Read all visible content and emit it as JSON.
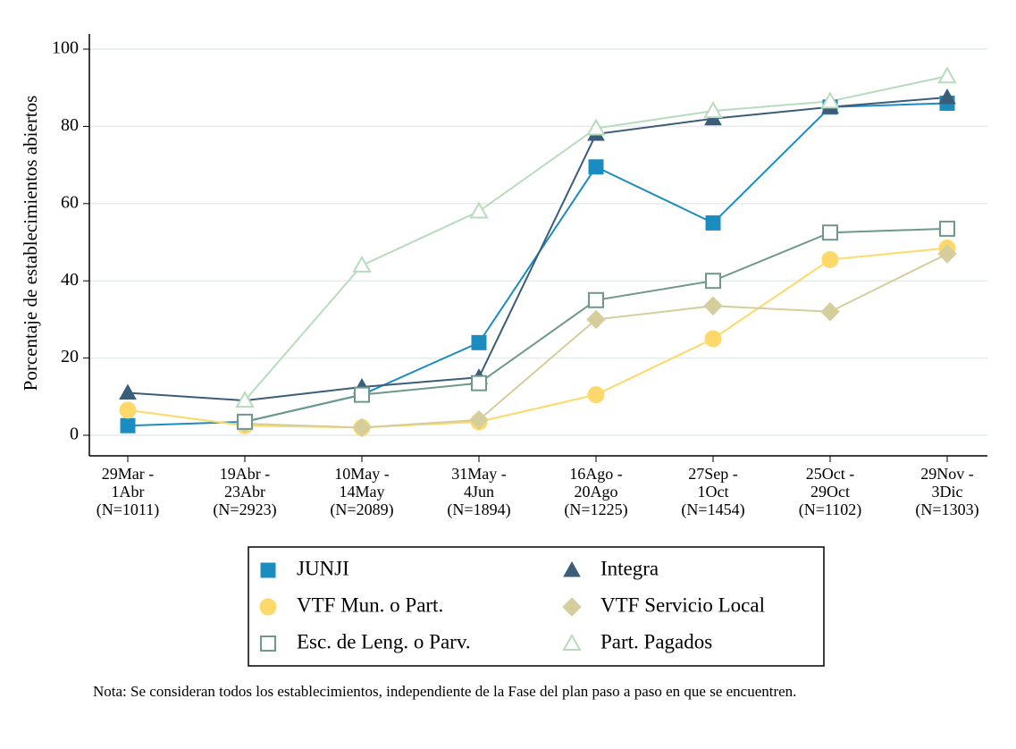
{
  "chart_data": {
    "type": "line",
    "ylabel": "Porcentaje de establecimientos abiertos",
    "categories": [
      [
        "29Mar -",
        "1Abr",
        "(N=1011)"
      ],
      [
        "19Abr -",
        "23Abr",
        "(N=2923)"
      ],
      [
        "10May -",
        "14May",
        "(N=2089)"
      ],
      [
        "31May -",
        "4Jun",
        "(N=1894)"
      ],
      [
        "16Ago -",
        "20Ago",
        "(N=1225)"
      ],
      [
        "27Sep -",
        "1Oct",
        "(N=1454)"
      ],
      [
        "25Oct -",
        "29Oct",
        "(N=1102)"
      ],
      [
        "29Nov -",
        "3Dic",
        "(N=1303)"
      ]
    ],
    "series": [
      {
        "name": "JUNJI",
        "color": "#1b8cc0",
        "marker": "square",
        "values": [
          2.5,
          3.5,
          10.5,
          24,
          69.5,
          55,
          85,
          86
        ]
      },
      {
        "name": "Integra",
        "color": "#3b5d78",
        "marker": "triangle",
        "values": [
          11,
          9,
          12.5,
          15,
          78,
          82,
          85,
          87.5
        ]
      },
      {
        "name": "VTF Mun. o Part.",
        "color": "#fcd96a",
        "marker": "circle",
        "values": [
          6.5,
          2.5,
          2,
          3.5,
          10.5,
          25,
          45.5,
          48.5
        ]
      },
      {
        "name": "VTF Servicio Local",
        "color": "#d5cd9b",
        "marker": "diamond",
        "values": [
          null,
          3,
          2,
          4,
          30,
          33.5,
          32,
          47
        ]
      },
      {
        "name": "Esc. de Leng. o Parv.",
        "color": "#6e988c",
        "marker": "square-hollow",
        "values": [
          null,
          3.5,
          10.5,
          13.5,
          35,
          40,
          52.5,
          53.5
        ]
      },
      {
        "name": "Part. Pagados",
        "color": "#b7dbbd",
        "marker": "triangle-hollow",
        "values": [
          null,
          9,
          44,
          58,
          79.5,
          84,
          86.5,
          93
        ]
      }
    ],
    "ylim": [
      0,
      100
    ],
    "yticks": [
      0,
      20,
      40,
      60,
      80,
      100
    ],
    "grid": true,
    "note": "Nota: Se consideran todos los establecimientos, independiente de la Fase del plan paso a paso en que se encuentren."
  }
}
